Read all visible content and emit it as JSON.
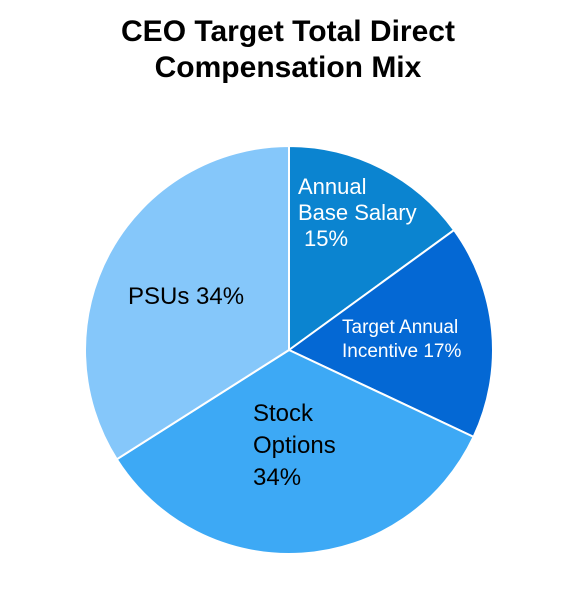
{
  "chart_data": {
    "type": "pie",
    "title": "CEO Target Total Direct Compensation Mix",
    "title_lines": [
      "CEO Target Total Direct",
      "Compensation Mix"
    ],
    "slices": [
      {
        "label": "Annual Base Salary",
        "value": 15,
        "label_lines": [
          "Annual",
          "Base Salary",
          "15%"
        ],
        "color": "#0B84D0",
        "text_color": "#ffffff"
      },
      {
        "label": "Target Annual Incentive",
        "value": 17,
        "label_lines": [
          "Target Annual",
          "Incentive 17%"
        ],
        "color": "#0468D4",
        "text_color": "#ffffff"
      },
      {
        "label": "Stock Options",
        "value": 34,
        "label_lines": [
          "Stock",
          "Options",
          "34%"
        ],
        "color": "#3DA9F5",
        "text_color": "#000000"
      },
      {
        "label": "PSUs",
        "value": 34,
        "label_lines": [
          "PSUs 34%"
        ],
        "color": "#85C7FA",
        "text_color": "#000000"
      }
    ],
    "legend": "none"
  }
}
